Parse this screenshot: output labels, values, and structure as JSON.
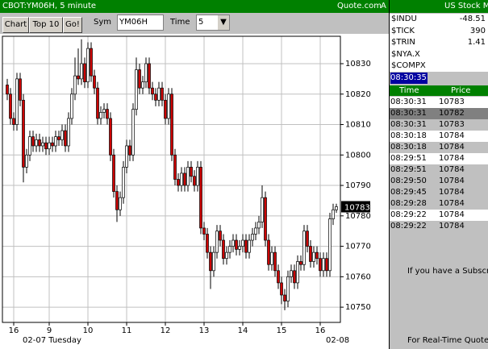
{
  "window": {
    "title": "CBOT:YM06H, 5 minute",
    "brand": "Quote.com",
    "brand_suffix": "A"
  },
  "toolbar": {
    "buttons": [
      "Chart",
      "Top 10",
      "Go!"
    ],
    "sym_label": "Sym",
    "sym_value": "YM06H",
    "time_label": "Time",
    "time_value": "5"
  },
  "chart_data": {
    "type": "candlestick",
    "up_color": "#ffffff",
    "down_color": "#cc0000",
    "grid": true,
    "open": [
      10823,
      10820,
      10812,
      10810,
      10825,
      10818,
      10796,
      10800,
      10806,
      10803,
      10805,
      10803,
      10804,
      10802,
      10804,
      10803,
      10806,
      10805,
      10808,
      10803,
      10812,
      10820,
      10826,
      10825,
      10830,
      10824,
      10835,
      10826,
      10822,
      10812,
      10814,
      10815,
      10812,
      10800,
      10788,
      10782,
      10786,
      10796,
      10803,
      10800,
      10815,
      10828,
      10822,
      10824,
      10830,
      10822,
      10820,
      10818,
      10822,
      10818,
      10812,
      10820,
      10800,
      10792,
      10790,
      10794,
      10790,
      10796,
      10793,
      10790,
      10796,
      10776,
      10774,
      10768,
      10762,
      10768,
      10775,
      10772,
      10766,
      10768,
      10770,
      10772,
      10769,
      10770,
      10772,
      10768,
      10772,
      10774,
      10776,
      10778,
      10786,
      10772,
      10764,
      10768,
      10762,
      10758,
      10754,
      10752,
      10760,
      10762,
      10758,
      10765,
      10764,
      10775,
      10770,
      10765,
      10768,
      10766,
      10762,
      10766,
      10762,
      10779,
      10782
    ],
    "high": [
      10825,
      10822,
      10814,
      10827,
      10827,
      10820,
      10802,
      10808,
      10808,
      10807,
      10807,
      10806,
      10806,
      10806,
      10806,
      10808,
      10808,
      10810,
      10810,
      10814,
      10822,
      10832,
      10835,
      10838,
      10832,
      10837,
      10837,
      10828,
      10824,
      10816,
      10817,
      10817,
      10814,
      10802,
      10790,
      10788,
      10798,
      10805,
      10805,
      10817,
      10832,
      10830,
      10826,
      10832,
      10832,
      10824,
      10822,
      10824,
      10824,
      10820,
      10822,
      10822,
      10802,
      10794,
      10796,
      10796,
      10798,
      10798,
      10795,
      10798,
      10798,
      10778,
      10776,
      10770,
      10770,
      10777,
      10777,
      10774,
      10770,
      10772,
      10774,
      10774,
      10772,
      10774,
      10774,
      10774,
      10776,
      10778,
      10780,
      10790,
      10788,
      10774,
      10770,
      10770,
      10764,
      10760,
      10756,
      10762,
      10764,
      10764,
      10767,
      10767,
      10777,
      10777,
      10772,
      10770,
      10770,
      10768,
      10768,
      10768,
      10781,
      10784,
      10784
    ],
    "low": [
      10818,
      10810,
      10808,
      10808,
      10816,
      10791,
      10794,
      10798,
      10801,
      10801,
      10801,
      10801,
      10800,
      10800,
      10801,
      10801,
      10803,
      10803,
      10801,
      10801,
      10810,
      10818,
      10823,
      10823,
      10822,
      10822,
      10824,
      10820,
      10810,
      10810,
      10812,
      10810,
      10798,
      10786,
      10778,
      10780,
      10784,
      10794,
      10798,
      10798,
      10813,
      10820,
      10820,
      10822,
      10820,
      10818,
      10816,
      10816,
      10816,
      10810,
      10810,
      10798,
      10790,
      10788,
      10788,
      10788,
      10788,
      10791,
      10788,
      10788,
      10774,
      10772,
      10766,
      10756,
      10760,
      10766,
      10770,
      10764,
      10764,
      10766,
      10768,
      10767,
      10767,
      10768,
      10766,
      10766,
      10770,
      10772,
      10774,
      10776,
      10770,
      10762,
      10762,
      10760,
      10756,
      10751,
      10749,
      10750,
      10758,
      10756,
      10756,
      10762,
      10762,
      10768,
      10763,
      10763,
      10764,
      10760,
      10760,
      10760,
      10760,
      10777,
      10781
    ],
    "close": [
      10820,
      10812,
      10810,
      10825,
      10818,
      10796,
      10800,
      10806,
      10803,
      10805,
      10803,
      10804,
      10802,
      10804,
      10803,
      10806,
      10805,
      10808,
      10803,
      10812,
      10820,
      10826,
      10825,
      10830,
      10824,
      10835,
      10826,
      10822,
      10812,
      10814,
      10815,
      10812,
      10800,
      10788,
      10782,
      10786,
      10796,
      10803,
      10800,
      10815,
      10828,
      10822,
      10824,
      10830,
      10822,
      10820,
      10818,
      10822,
      10818,
      10812,
      10820,
      10800,
      10792,
      10790,
      10794,
      10790,
      10796,
      10793,
      10790,
      10796,
      10776,
      10774,
      10768,
      10762,
      10768,
      10775,
      10772,
      10766,
      10768,
      10770,
      10772,
      10769,
      10770,
      10772,
      10768,
      10772,
      10774,
      10776,
      10778,
      10786,
      10772,
      10764,
      10768,
      10762,
      10758,
      10754,
      10752,
      10760,
      10762,
      10758,
      10765,
      10764,
      10775,
      10770,
      10765,
      10768,
      10766,
      10762,
      10766,
      10762,
      10779,
      10782,
      10783
    ],
    "xlim": [
      -1.5,
      103.25
    ],
    "xticks": [
      {
        "value": 2,
        "label": "16"
      },
      {
        "value": 13,
        "label": "9"
      },
      {
        "value": 25,
        "label": "10"
      },
      {
        "value": 37,
        "label": "11"
      },
      {
        "value": 49,
        "label": "12"
      },
      {
        "value": 61,
        "label": "13"
      },
      {
        "value": 73,
        "label": "14"
      },
      {
        "value": 85,
        "label": "15"
      },
      {
        "value": 97,
        "label": "16"
      }
    ],
    "ylim": [
      10745,
      10839
    ],
    "yticks": [
      10750,
      10760,
      10770,
      10780,
      10790,
      10800,
      10810,
      10820,
      10830
    ],
    "last_price": 10783,
    "date_labels": [
      "02-07 Tuesday",
      "02-08"
    ]
  },
  "right_panel": {
    "title": "US Stock M",
    "indexes": [
      {
        "symbol": "$INDU",
        "value": -48.51
      },
      {
        "symbol": "$TICK",
        "value": 390
      },
      {
        "symbol": "$TRIN",
        "value": 1.41
      },
      {
        "symbol": "$NYA.X"
      },
      {
        "symbol": "$COMPX"
      }
    ],
    "clock": "08:30:35",
    "columns": [
      "Time",
      "Price"
    ],
    "trades": [
      {
        "time": "08:30:31",
        "price": 10783,
        "color": "#ffffff"
      },
      {
        "time": "08:30:31",
        "price": 10782,
        "color": "#808080"
      },
      {
        "time": "08:30:31",
        "price": 10783,
        "color": "#c0c0c0"
      },
      {
        "time": "08:30:18",
        "price": 10784,
        "color": "#ffffff"
      },
      {
        "time": "08:30:18",
        "price": 10784,
        "color": "#c0c0c0"
      },
      {
        "time": "08:29:51",
        "price": 10784,
        "color": "#ffffff"
      },
      {
        "time": "08:29:51",
        "price": 10784,
        "color": "#c0c0c0"
      },
      {
        "time": "08:29:50",
        "price": 10784,
        "color": "#c0c0c0"
      },
      {
        "time": "08:29:45",
        "price": 10784,
        "color": "#c0c0c0"
      },
      {
        "time": "08:29:28",
        "price": 10784,
        "color": "#c0c0c0"
      },
      {
        "time": "08:29:22",
        "price": 10784,
        "color": "#ffffff"
      },
      {
        "time": "08:29:22",
        "price": 10784,
        "color": "#c0c0c0"
      }
    ],
    "notes": [
      "If you have a Subscri",
      "For Real-Time Quote"
    ]
  }
}
